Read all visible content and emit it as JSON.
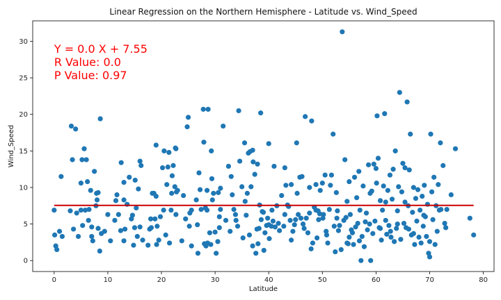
{
  "chart_data": {
    "type": "scatter",
    "title": "Linear Regression on the Northern Hemisphere - Latitude vs. Wind_Speed",
    "xlabel": "Latitude",
    "ylabel": "Wind_Speed",
    "xlim": [
      -4,
      82
    ],
    "ylim": [
      -1.5,
      32.8
    ],
    "xticks": [
      0,
      10,
      20,
      30,
      40,
      50,
      60,
      70,
      80
    ],
    "yticks": [
      0,
      5,
      10,
      15,
      20,
      25,
      30
    ],
    "grid": false,
    "colors": {
      "points": "#1f77b4",
      "line": "#cc0000",
      "annotation": "#ff0000"
    },
    "annotations": [
      "Y = 0.0 X + 7.55",
      "R Value: 0.0",
      "P Value: 0.97"
    ],
    "regression": {
      "slope": 0.0,
      "intercept": 7.55,
      "x_range": [
        0,
        78.2
      ]
    },
    "points": [
      [
        0,
        6.9
      ],
      [
        0.1,
        3.5
      ],
      [
        0.3,
        2
      ],
      [
        0.5,
        1.5
      ],
      [
        1,
        4
      ],
      [
        1.3,
        11.5
      ],
      [
        1.5,
        3.3
      ],
      [
        3.2,
        18.4
      ],
      [
        3.4,
        13.8
      ],
      [
        3.6,
        4.3
      ],
      [
        4,
        18
      ],
      [
        4.2,
        6.5
      ],
      [
        4.5,
        3.3
      ],
      [
        5,
        6.9
      ],
      [
        5,
        10.6
      ],
      [
        5.2,
        13.8
      ],
      [
        5.3,
        4.8
      ],
      [
        5.6,
        15.3
      ],
      [
        5.8,
        6.9
      ],
      [
        6,
        13.8
      ],
      [
        6.2,
        10.8
      ],
      [
        6.4,
        5.5
      ],
      [
        6.5,
        7
      ],
      [
        6.8,
        9.6
      ],
      [
        7,
        3.3
      ],
      [
        7,
        4.6
      ],
      [
        7.2,
        2.7
      ],
      [
        7.5,
        12.2
      ],
      [
        7.8,
        7.5
      ],
      [
        7.9,
        9.2
      ],
      [
        8,
        8.3
      ],
      [
        8.2,
        4.4
      ],
      [
        8.5,
        1.3
      ],
      [
        8.6,
        19.4
      ],
      [
        8.8,
        3.7
      ],
      [
        9.4,
        4
      ],
      [
        10,
        6.3
      ],
      [
        10.5,
        2.7
      ],
      [
        11.5,
        8.2
      ],
      [
        11.7,
        9
      ],
      [
        12,
        6.3
      ],
      [
        12.4,
        4.1
      ],
      [
        12.5,
        13.4
      ],
      [
        13,
        10.7
      ],
      [
        13,
        2.7
      ],
      [
        13.2,
        4.3
      ],
      [
        13.6,
        7.7
      ],
      [
        14,
        11.4
      ],
      [
        14.4,
        5.7
      ],
      [
        14.6,
        6.2
      ],
      [
        14.8,
        2.1
      ],
      [
        15,
        4.5
      ],
      [
        15.3,
        7.2
      ],
      [
        15.5,
        3.3
      ],
      [
        15.7,
        9.8
      ],
      [
        16,
        4.6
      ],
      [
        16,
        13.6
      ],
      [
        16.2,
        13
      ],
      [
        16.5,
        2.8
      ],
      [
        17.5,
        2.1
      ],
      [
        17.8,
        4.3
      ],
      [
        18,
        5.7
      ],
      [
        18.3,
        9.2
      ],
      [
        18.6,
        9.2
      ],
      [
        18.8,
        5.7
      ],
      [
        19,
        8.8
      ],
      [
        19,
        15.8
      ],
      [
        19.1,
        2.2
      ],
      [
        19.2,
        4.7
      ],
      [
        19.5,
        2.8
      ],
      [
        19.8,
        6
      ],
      [
        20.2,
        12.7
      ],
      [
        20.4,
        6.9
      ],
      [
        20.5,
        15
      ],
      [
        20.8,
        3.5
      ],
      [
        21,
        10.4
      ],
      [
        21.2,
        12.8
      ],
      [
        21.4,
        14.8
      ],
      [
        21.5,
        2.4
      ],
      [
        21.8,
        6.9
      ],
      [
        21.9,
        9.2
      ],
      [
        22,
        11.6
      ],
      [
        22.2,
        13
      ],
      [
        22.5,
        10.1
      ],
      [
        22.6,
        15.4
      ],
      [
        22.7,
        15.3
      ],
      [
        22.8,
        9.4
      ],
      [
        23,
        9.6
      ],
      [
        23.8,
        2.7
      ],
      [
        24.5,
        5.7
      ],
      [
        24.8,
        18.3
      ],
      [
        25,
        19.6
      ],
      [
        25.2,
        4.7
      ],
      [
        25.3,
        6.5
      ],
      [
        25.6,
        6.9
      ],
      [
        25.6,
        2
      ],
      [
        26.5,
        8.3
      ],
      [
        26.8,
        1
      ],
      [
        27,
        12
      ],
      [
        27.2,
        9.7
      ],
      [
        27.8,
        20.7
      ],
      [
        27.9,
        16.2
      ],
      [
        28,
        2.3
      ],
      [
        28.2,
        7.2
      ],
      [
        28.3,
        2
      ],
      [
        28.5,
        9.6
      ],
      [
        28.5,
        6.9
      ],
      [
        28.6,
        2.4
      ],
      [
        28.7,
        20.7
      ],
      [
        29,
        3.8
      ],
      [
        29.2,
        2.2
      ],
      [
        29.3,
        15
      ],
      [
        29.5,
        8.3
      ],
      [
        29.7,
        9.2
      ],
      [
        30,
        3.9
      ],
      [
        30.2,
        1
      ],
      [
        30.5,
        2.6
      ],
      [
        30.6,
        9.3
      ],
      [
        30.8,
        4.5
      ],
      [
        31,
        7
      ],
      [
        31,
        9.9
      ],
      [
        31.5,
        18.4
      ],
      [
        32,
        5.5
      ],
      [
        32.5,
        12.9
      ],
      [
        32.8,
        4
      ],
      [
        33,
        11.5
      ],
      [
        33.2,
        9
      ],
      [
        33.5,
        7
      ],
      [
        33.8,
        6.3
      ],
      [
        34.2,
        4.7
      ],
      [
        34.4,
        20.5
      ],
      [
        34.6,
        13.6
      ],
      [
        35,
        10.1
      ],
      [
        35.2,
        3.1
      ],
      [
        35.5,
        16.1
      ],
      [
        35.6,
        8.1
      ],
      [
        35.8,
        6.2
      ],
      [
        36,
        9.2
      ],
      [
        36.2,
        14.7
      ],
      [
        36.5,
        14.9
      ],
      [
        36.7,
        10.1
      ],
      [
        37,
        2
      ],
      [
        37,
        15.1
      ],
      [
        37.1,
        13.5
      ],
      [
        37.6,
        1
      ],
      [
        37.8,
        4.3
      ],
      [
        37.9,
        13.2
      ],
      [
        38,
        2.3
      ],
      [
        38.2,
        4.4
      ],
      [
        38.3,
        7.6
      ],
      [
        38.5,
        20.2
      ],
      [
        38.6,
        5.6
      ],
      [
        38.8,
        6.7
      ],
      [
        39,
        6.6
      ],
      [
        39.1,
        1.4
      ],
      [
        39.3,
        3.8
      ],
      [
        39.6,
        4.8
      ],
      [
        39.8,
        5.8
      ],
      [
        40,
        4.9
      ],
      [
        40.1,
        3
      ],
      [
        40.5,
        4.7
      ],
      [
        40.6,
        6.9
      ],
      [
        40.8,
        5.4
      ],
      [
        41,
        12.9
      ],
      [
        41.2,
        4.6
      ],
      [
        41.5,
        7.5
      ],
      [
        41.8,
        5.1
      ],
      [
        42.4,
        8.9
      ],
      [
        42.8,
        4.7
      ],
      [
        43,
        12.7
      ],
      [
        43.2,
        10.3
      ],
      [
        43.5,
        7.6
      ],
      [
        43.7,
        7.4
      ],
      [
        44,
        5.5
      ],
      [
        44.2,
        2.8
      ],
      [
        44.5,
        4
      ],
      [
        44.8,
        4.9
      ],
      [
        45,
        5.6
      ],
      [
        45.3,
        9.2
      ],
      [
        45.5,
        6.3
      ],
      [
        45.8,
        11.4
      ],
      [
        46,
        5.8
      ],
      [
        46.2,
        11.5
      ],
      [
        46.6,
        4.4
      ],
      [
        46.8,
        19.7
      ],
      [
        47,
        5.8
      ],
      [
        47.3,
        3.8
      ],
      [
        47.6,
        6.5
      ],
      [
        47.9,
        1.6
      ],
      [
        48,
        19.1
      ],
      [
        48.2,
        2.4
      ],
      [
        48.5,
        7.3
      ],
      [
        48.8,
        10.4
      ],
      [
        49,
        3.1
      ],
      [
        49.2,
        6.8
      ],
      [
        49.3,
        5.6
      ],
      [
        49.5,
        6.4
      ],
      [
        49.6,
        9.6
      ],
      [
        50,
        10.6
      ],
      [
        50.2,
        6.3
      ],
      [
        50.5,
        11.7
      ],
      [
        50.7,
        4
      ],
      [
        50.8,
        3.5
      ],
      [
        51,
        2.4
      ],
      [
        51.3,
        7
      ],
      [
        51.5,
        10.3
      ],
      [
        51.7,
        11.7
      ],
      [
        52,
        17.3
      ],
      [
        52.2,
        4.7
      ],
      [
        52.4,
        1.2
      ],
      [
        52.6,
        9.3
      ],
      [
        52.8,
        6.8
      ],
      [
        53,
        4.1
      ],
      [
        53.2,
        4.8
      ],
      [
        53.5,
        1.5
      ],
      [
        53.7,
        31.3
      ],
      [
        54,
        5.5
      ],
      [
        54.2,
        13.8
      ],
      [
        54.4,
        5.9
      ],
      [
        54.6,
        8.1
      ],
      [
        54.8,
        2.3
      ],
      [
        55,
        10.8
      ],
      [
        55.2,
        6.3
      ],
      [
        55.4,
        4.2
      ],
      [
        55.6,
        3.8
      ],
      [
        55.8,
        2.2
      ],
      [
        56,
        11.4
      ],
      [
        56.2,
        4.6
      ],
      [
        56.4,
        8.6
      ],
      [
        56.6,
        5.1
      ],
      [
        56.8,
        12.2
      ],
      [
        57,
        6.9
      ],
      [
        57.2,
        0
      ],
      [
        57.4,
        3.3
      ],
      [
        57.6,
        10.2
      ],
      [
        57.8,
        1.9
      ],
      [
        58,
        5.3
      ],
      [
        58.2,
        6.5
      ],
      [
        58.4,
        4.2
      ],
      [
        58.6,
        13.1
      ],
      [
        58.8,
        5
      ],
      [
        59,
        0
      ],
      [
        59.2,
        9.5
      ],
      [
        59.4,
        3.7
      ],
      [
        59.6,
        13.2
      ],
      [
        59.8,
        5.4
      ],
      [
        60,
        12.6
      ],
      [
        60.2,
        19.8
      ],
      [
        60.4,
        14
      ],
      [
        60.6,
        4.5
      ],
      [
        60.8,
        8.2
      ],
      [
        61,
        2.8
      ],
      [
        61.2,
        6.9
      ],
      [
        61.4,
        10.2
      ],
      [
        61.6,
        20.1
      ],
      [
        61.8,
        5.5
      ],
      [
        62,
        3.6
      ],
      [
        62.2,
        9.6
      ],
      [
        62.4,
        4.8
      ],
      [
        62.6,
        11.7
      ],
      [
        62.8,
        3.2
      ],
      [
        63,
        8.4
      ],
      [
        63.2,
        12.5
      ],
      [
        63.4,
        2.6
      ],
      [
        63.6,
        15
      ],
      [
        63.8,
        4.4
      ],
      [
        64,
        6.8
      ],
      [
        64.2,
        10.1
      ],
      [
        64.4,
        23
      ],
      [
        64.6,
        2.9
      ],
      [
        64.8,
        9.4
      ],
      [
        65,
        13.3
      ],
      [
        65.2,
        5.1
      ],
      [
        65.4,
        8
      ],
      [
        65.6,
        4.5
      ],
      [
        65.8,
        21.7
      ],
      [
        66,
        7.5
      ],
      [
        66.2,
        12.4
      ],
      [
        66.4,
        17.3
      ],
      [
        66.6,
        3.5
      ],
      [
        66.8,
        6.6
      ],
      [
        67,
        10
      ],
      [
        67.2,
        2.2
      ],
      [
        67.4,
        8.5
      ],
      [
        67.6,
        5.4
      ],
      [
        67.8,
        9.7
      ],
      [
        68,
        3.2
      ],
      [
        68.2,
        6.9
      ],
      [
        68.4,
        2.4
      ],
      [
        68.6,
        8.8
      ],
      [
        68.8,
        4.7
      ],
      [
        69,
        10.3
      ],
      [
        69.2,
        6
      ],
      [
        69.4,
        3.3
      ],
      [
        69.6,
        7.7
      ],
      [
        69.8,
        1
      ],
      [
        70,
        0.5
      ],
      [
        70.2,
        17.3
      ],
      [
        70.4,
        9.4
      ],
      [
        70.6,
        5.6
      ],
      [
        70.8,
        11.4
      ],
      [
        71,
        2.2
      ],
      [
        71.2,
        7.5
      ],
      [
        71.4,
        4
      ],
      [
        71.6,
        10.4
      ],
      [
        71.8,
        6.9
      ],
      [
        72,
        16.1
      ],
      [
        72.5,
        13
      ],
      [
        72.8,
        5.1
      ],
      [
        73,
        4.5
      ],
      [
        73.2,
        7
      ],
      [
        74,
        9
      ],
      [
        74.8,
        15.3
      ],
      [
        77.5,
        5.8
      ],
      [
        78.2,
        3.5
      ],
      [
        3.0,
        6.8
      ],
      [
        45.2,
        16.1
      ],
      [
        44.2,
        10.4
      ],
      [
        60.1,
        10.6
      ],
      [
        65.4,
        12.7
      ],
      [
        72.1,
        7.0
      ],
      [
        55.0,
        3.2
      ],
      [
        26.7,
        4.9
      ],
      [
        33.9,
        5.5
      ],
      [
        42.0,
        4.1
      ],
      [
        46.4,
        5.0
      ],
      [
        50.1,
        5.8
      ],
      [
        64.0,
        5.0
      ],
      [
        52.7,
        5.8
      ],
      [
        58.9,
        9.2
      ],
      [
        36.4,
        3.5
      ],
      [
        11.3,
        5.5
      ],
      [
        24.1,
        8.9
      ],
      [
        18.1,
        4.5
      ],
      [
        37.4,
        11.8
      ],
      [
        62.7,
        4.0
      ],
      [
        56.9,
        2.7
      ],
      [
        67.0,
        3.7
      ],
      [
        40.0,
        16.0
      ],
      [
        30.8,
        6.0
      ],
      [
        13.0,
        8.3
      ],
      [
        15.1,
        11.0
      ],
      [
        22.7,
        6.3
      ],
      [
        27.4,
        7.0
      ],
      [
        61.8,
        8.0
      ],
      [
        47.6,
        10.0
      ],
      [
        66.1,
        4.3
      ],
      [
        8.2,
        9.3
      ],
      [
        29.4,
        11.2
      ],
      [
        54.6,
        2.4
      ],
      [
        68.9,
        6.2
      ],
      [
        70.0,
        2.6
      ],
      [
        60.8,
        4.4
      ],
      [
        48.8,
        6.9
      ],
      [
        43.0,
        6.3
      ]
    ]
  }
}
